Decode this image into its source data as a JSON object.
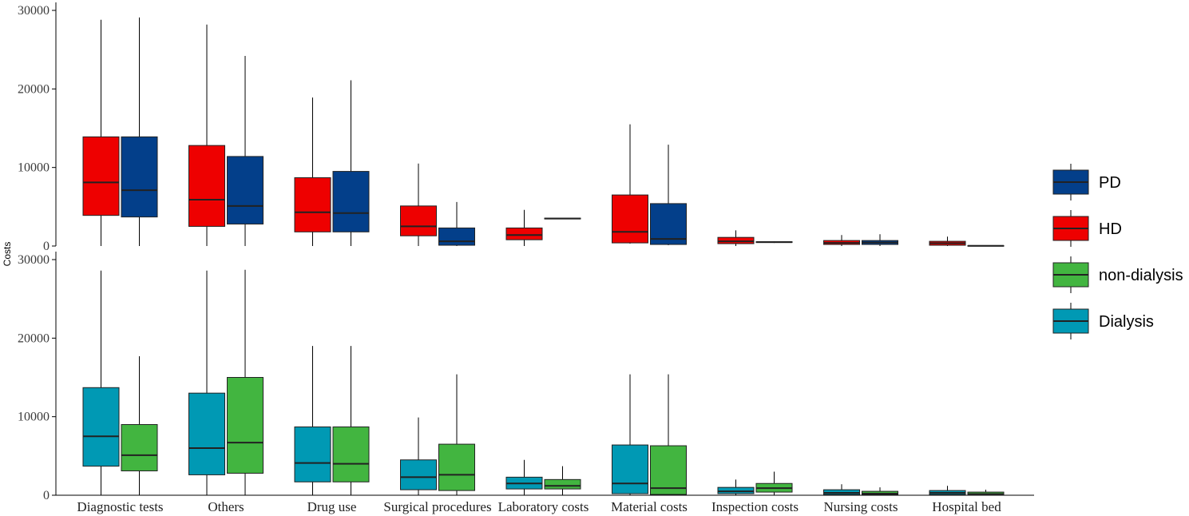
{
  "chart_data": {
    "type": "boxplot",
    "ylabel": "Costs",
    "categories": [
      "Diagnostic tests",
      "Others",
      "Drug use",
      "Surgical procedures",
      "Laboratory costs",
      "Material costs",
      "Inspection costs",
      "Nursing costs",
      "Hospital bed"
    ],
    "ylim": [
      0,
      30000
    ],
    "yticks": [
      "0",
      "10000",
      "20000",
      "30000"
    ],
    "legend": {
      "position": "right",
      "items": [
        {
          "name": "PD",
          "color": "#033F8A"
        },
        {
          "name": "HD",
          "color": "#EE0000"
        },
        {
          "name": "non-dialysis",
          "color": "#42B540"
        },
        {
          "name": "Dialysis",
          "color": "#0099B4"
        }
      ]
    },
    "panels": [
      {
        "series": [
          {
            "name": "HD",
            "color": "#EE0000",
            "boxes": [
              {
                "min": 0,
                "q1": 3900,
                "median": 8100,
                "q3": 13900,
                "max": 28800
              },
              {
                "min": 0,
                "q1": 2500,
                "median": 5900,
                "q3": 12800,
                "max": 28200
              },
              {
                "min": 0,
                "q1": 1800,
                "median": 4300,
                "q3": 8700,
                "max": 18900
              },
              {
                "min": 0,
                "q1": 1300,
                "median": 2500,
                "q3": 5100,
                "max": 10500
              },
              {
                "min": 0,
                "q1": 800,
                "median": 1400,
                "q3": 2300,
                "max": 4600
              },
              {
                "min": 300,
                "q1": 400,
                "median": 1800,
                "q3": 6500,
                "max": 15500
              },
              {
                "min": 0,
                "q1": 300,
                "median": 600,
                "q3": 1100,
                "max": 2000
              },
              {
                "min": 0,
                "q1": 200,
                "median": 400,
                "q3": 700,
                "max": 1400
              },
              {
                "min": 0,
                "q1": 100,
                "median": 350,
                "q3": 600,
                "max": 1200
              }
            ]
          },
          {
            "name": "PD",
            "color": "#033F8A",
            "boxes": [
              {
                "min": 0,
                "q1": 3700,
                "median": 7100,
                "q3": 13900,
                "max": 29100
              },
              {
                "min": 0,
                "q1": 2800,
                "median": 5100,
                "q3": 11400,
                "max": 24200
              },
              {
                "min": 0,
                "q1": 1800,
                "median": 4200,
                "q3": 9500,
                "max": 21100
              },
              {
                "min": 0,
                "q1": 100,
                "median": 600,
                "q3": 2300,
                "max": 5600
              },
              {
                "min": 3450,
                "q1": 3450,
                "median": 3500,
                "q3": 3550,
                "max": 3550
              },
              {
                "min": 100,
                "q1": 200,
                "median": 900,
                "q3": 5400,
                "max": 12900
              },
              {
                "min": 400,
                "q1": 450,
                "median": 500,
                "q3": 550,
                "max": 600
              },
              {
                "min": 0,
                "q1": 200,
                "median": 450,
                "q3": 700,
                "max": 1500
              },
              {
                "min": 0,
                "q1": 0,
                "median": 30,
                "q3": 60,
                "max": 60
              }
            ]
          }
        ]
      },
      {
        "series": [
          {
            "name": "Dialysis",
            "color": "#0099B4",
            "boxes": [
              {
                "min": 0,
                "q1": 3700,
                "median": 7500,
                "q3": 13700,
                "max": 28600
              },
              {
                "min": 0,
                "q1": 2600,
                "median": 6000,
                "q3": 13000,
                "max": 28600
              },
              {
                "min": 0,
                "q1": 1700,
                "median": 4100,
                "q3": 8700,
                "max": 19000
              },
              {
                "min": 0,
                "q1": 700,
                "median": 2300,
                "q3": 4500,
                "max": 9900
              },
              {
                "min": 0,
                "q1": 800,
                "median": 1500,
                "q3": 2300,
                "max": 4500
              },
              {
                "min": 0,
                "q1": 200,
                "median": 1500,
                "q3": 6400,
                "max": 15400
              },
              {
                "min": 0,
                "q1": 200,
                "median": 500,
                "q3": 1000,
                "max": 2000
              },
              {
                "min": 0,
                "q1": 100,
                "median": 300,
                "q3": 700,
                "max": 1400
              },
              {
                "min": 0,
                "q1": 100,
                "median": 300,
                "q3": 600,
                "max": 1200
              }
            ]
          },
          {
            "name": "non-dialysis",
            "color": "#42B540",
            "boxes": [
              {
                "min": 0,
                "q1": 3100,
                "median": 5100,
                "q3": 9000,
                "max": 17700
              },
              {
                "min": 0,
                "q1": 2800,
                "median": 6700,
                "q3": 15000,
                "max": 28700
              },
              {
                "min": 0,
                "q1": 1700,
                "median": 4000,
                "q3": 8700,
                "max": 19000
              },
              {
                "min": 0,
                "q1": 600,
                "median": 2600,
                "q3": 6500,
                "max": 15400
              },
              {
                "min": 0,
                "q1": 800,
                "median": 1200,
                "q3": 2000,
                "max": 3700
              },
              {
                "min": 0,
                "q1": 100,
                "median": 900,
                "q3": 6300,
                "max": 15400
              },
              {
                "min": 0,
                "q1": 400,
                "median": 900,
                "q3": 1500,
                "max": 3000
              },
              {
                "min": 0,
                "q1": 100,
                "median": 200,
                "q3": 500,
                "max": 1000
              },
              {
                "min": 0,
                "q1": 50,
                "median": 150,
                "q3": 400,
                "max": 700
              }
            ]
          }
        ]
      }
    ]
  }
}
